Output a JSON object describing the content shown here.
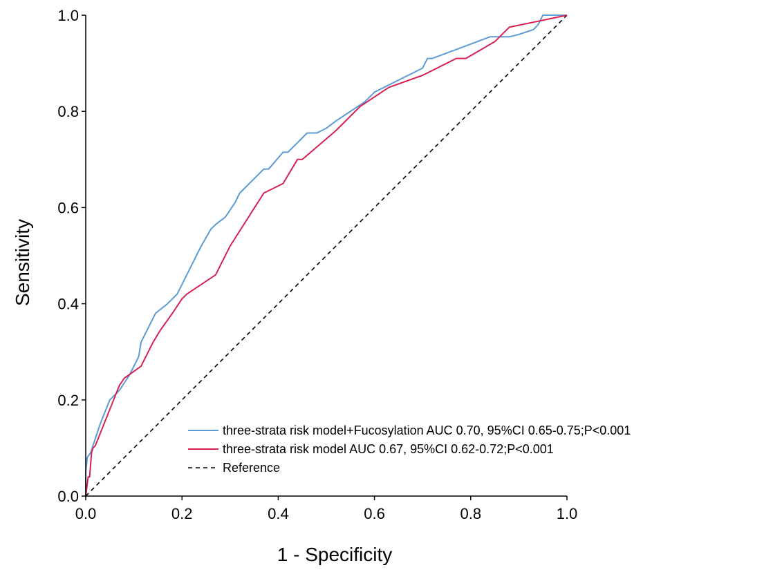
{
  "chart_data": {
    "type": "line",
    "xlabel": "1 - Specificity",
    "ylabel": "Sensitivity",
    "xlim": [
      0,
      1
    ],
    "ylim": [
      0,
      1
    ],
    "x_ticks": [
      "0.0",
      "0.2",
      "0.4",
      "0.6",
      "0.8",
      "1.0"
    ],
    "y_ticks": [
      "0.0",
      "0.2",
      "0.4",
      "0.6",
      "0.8",
      "1.0"
    ],
    "grid": false,
    "legend_position": "bottom-right",
    "series": [
      {
        "name": "three-strata risk model+Fucosylation AUC 0.70, 95%CI 0.65-0.75;P<0.001",
        "color": "#5b9bd5",
        "style": "solid",
        "points": [
          [
            0,
            0
          ],
          [
            0,
            0.05
          ],
          [
            0.003,
            0.08
          ],
          [
            0.01,
            0.09
          ],
          [
            0.02,
            0.12
          ],
          [
            0.03,
            0.15
          ],
          [
            0.05,
            0.2
          ],
          [
            0.07,
            0.22
          ],
          [
            0.09,
            0.25
          ],
          [
            0.11,
            0.29
          ],
          [
            0.115,
            0.32
          ],
          [
            0.13,
            0.35
          ],
          [
            0.145,
            0.38
          ],
          [
            0.17,
            0.4
          ],
          [
            0.19,
            0.42
          ],
          [
            0.2,
            0.44
          ],
          [
            0.22,
            0.48
          ],
          [
            0.24,
            0.52
          ],
          [
            0.26,
            0.555
          ],
          [
            0.27,
            0.565
          ],
          [
            0.29,
            0.58
          ],
          [
            0.31,
            0.61
          ],
          [
            0.32,
            0.63
          ],
          [
            0.35,
            0.66
          ],
          [
            0.37,
            0.68
          ],
          [
            0.38,
            0.68
          ],
          [
            0.41,
            0.715
          ],
          [
            0.42,
            0.715
          ],
          [
            0.45,
            0.745
          ],
          [
            0.46,
            0.755
          ],
          [
            0.48,
            0.755
          ],
          [
            0.5,
            0.765
          ],
          [
            0.52,
            0.78
          ],
          [
            0.58,
            0.82
          ],
          [
            0.6,
            0.84
          ],
          [
            0.61,
            0.845
          ],
          [
            0.64,
            0.86
          ],
          [
            0.67,
            0.875
          ],
          [
            0.7,
            0.89
          ],
          [
            0.71,
            0.91
          ],
          [
            0.72,
            0.91
          ],
          [
            0.8,
            0.94
          ],
          [
            0.84,
            0.955
          ],
          [
            0.86,
            0.955
          ],
          [
            0.88,
            0.955
          ],
          [
            0.9,
            0.96
          ],
          [
            0.93,
            0.97
          ],
          [
            0.94,
            0.98
          ],
          [
            0.95,
            1
          ],
          [
            0.97,
            1
          ],
          [
            1,
            1
          ]
        ]
      },
      {
        "name": "three-strata risk model AUC 0.67, 95%CI 0.62-0.72;P<0.001",
        "color": "#d62050",
        "style": "solid",
        "points": [
          [
            0,
            0
          ],
          [
            0.005,
            0.04
          ],
          [
            0.008,
            0.04
          ],
          [
            0.012,
            0.09
          ],
          [
            0.015,
            0.1
          ],
          [
            0.02,
            0.105
          ],
          [
            0.07,
            0.23
          ],
          [
            0.08,
            0.245
          ],
          [
            0.115,
            0.27
          ],
          [
            0.14,
            0.32
          ],
          [
            0.155,
            0.345
          ],
          [
            0.18,
            0.38
          ],
          [
            0.2,
            0.41
          ],
          [
            0.21,
            0.42
          ],
          [
            0.27,
            0.46
          ],
          [
            0.3,
            0.52
          ],
          [
            0.37,
            0.63
          ],
          [
            0.41,
            0.65
          ],
          [
            0.44,
            0.7
          ],
          [
            0.45,
            0.7
          ],
          [
            0.52,
            0.76
          ],
          [
            0.57,
            0.81
          ],
          [
            0.63,
            0.85
          ],
          [
            0.7,
            0.875
          ],
          [
            0.77,
            0.91
          ],
          [
            0.79,
            0.91
          ],
          [
            0.85,
            0.945
          ],
          [
            0.88,
            0.975
          ],
          [
            1,
            1
          ]
        ]
      },
      {
        "name": "Reference",
        "color": "#000000",
        "style": "dashed",
        "points": [
          [
            0,
            0
          ],
          [
            1,
            1
          ]
        ]
      }
    ]
  }
}
